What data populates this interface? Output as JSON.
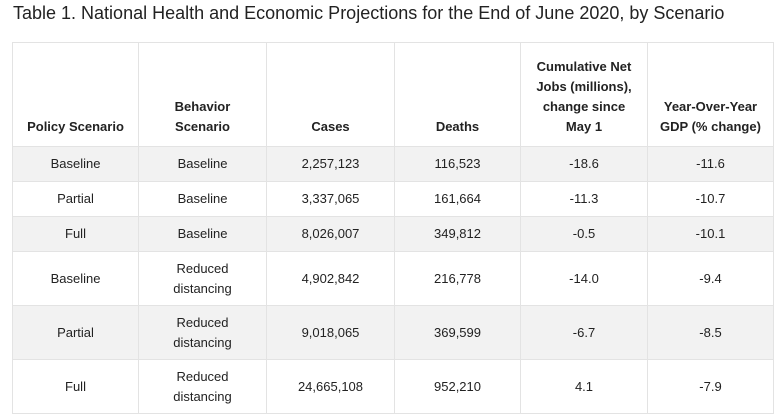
{
  "title": "Table 1. National Health and Economic Projections for the End of June 2020, by Scenario",
  "headers": {
    "policy": "Policy Scenario",
    "behavior": "Behavior Scenario",
    "cases": "Cases",
    "deaths": "Deaths",
    "jobs": "Cumulative Net Jobs (millions), change since May 1",
    "gdp": "Year-Over-Year GDP (% change)"
  },
  "rows": [
    {
      "policy": "Baseline",
      "behavior": "Baseline",
      "cases": "2,257,123",
      "deaths": "116,523",
      "jobs": "-18.6",
      "gdp": "-11.6"
    },
    {
      "policy": "Partial",
      "behavior": "Baseline",
      "cases": "3,337,065",
      "deaths": "161,664",
      "jobs": "-11.3",
      "gdp": "-10.7"
    },
    {
      "policy": "Full",
      "behavior": "Baseline",
      "cases": "8,026,007",
      "deaths": "349,812",
      "jobs": "-0.5",
      "gdp": "-10.1"
    },
    {
      "policy": "Baseline",
      "behavior": "Reduced distancing",
      "cases": "4,902,842",
      "deaths": "216,778",
      "jobs": "-14.0",
      "gdp": "-9.4"
    },
    {
      "policy": "Partial",
      "behavior": "Reduced distancing",
      "cases": "9,018,065",
      "deaths": "369,599",
      "jobs": "-6.7",
      "gdp": "-8.5"
    },
    {
      "policy": "Full",
      "behavior": "Reduced distancing",
      "cases": "24,665,108",
      "deaths": "952,210",
      "jobs": "4.1",
      "gdp": "-7.9"
    }
  ],
  "colors": {
    "shaded_row": "#f2f2f2",
    "border": "#e3e3e3",
    "text": "#222222"
  }
}
